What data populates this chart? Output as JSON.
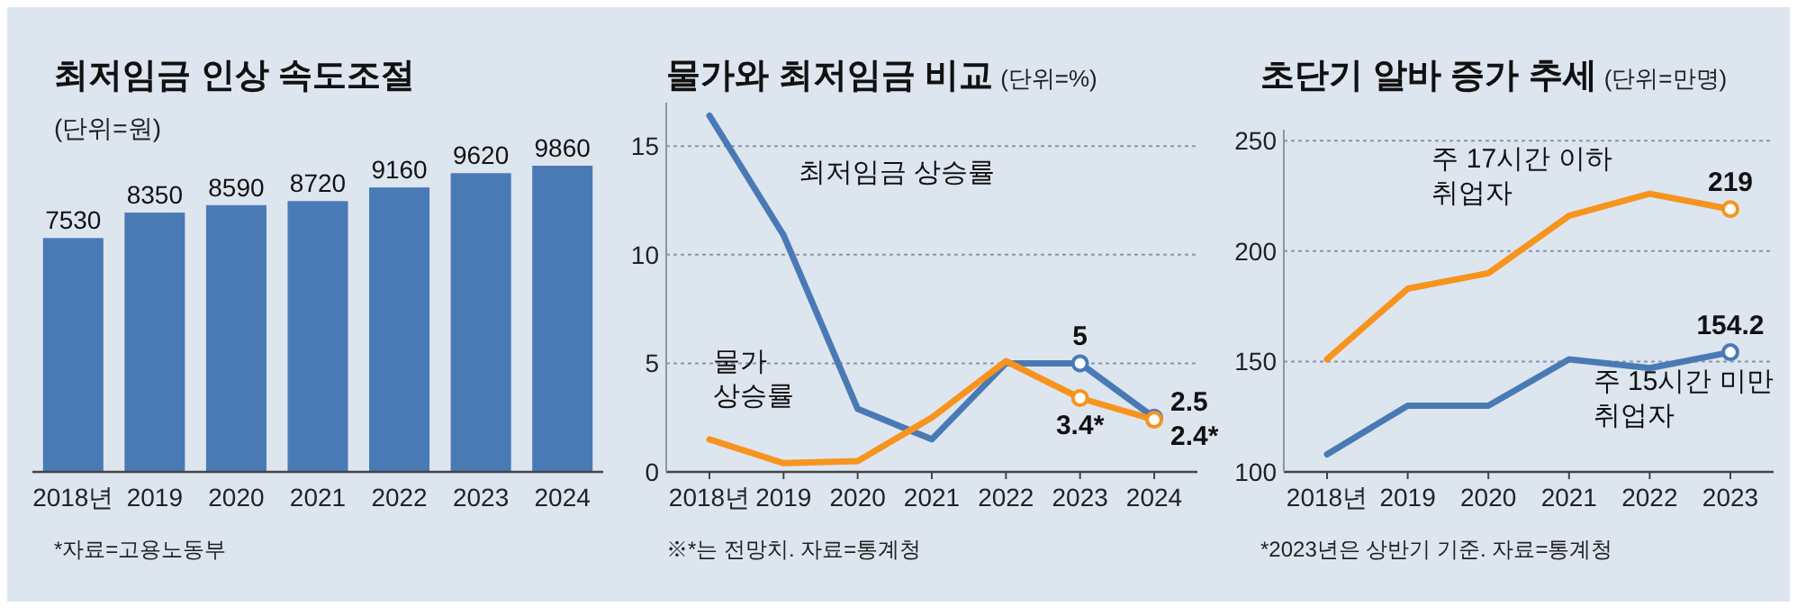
{
  "chart_data": [
    {
      "type": "bar",
      "title": "최저임금 인상 속도조절",
      "subtitle": "(단위=원)",
      "categories": [
        "2018년",
        "2019",
        "2020",
        "2021",
        "2022",
        "2023",
        "2024"
      ],
      "values": [
        7530,
        8350,
        8590,
        8720,
        9160,
        9620,
        9860
      ],
      "color": "#4a7ab5",
      "data_labels": true,
      "annotations": [
        "*자료=고용노동부"
      ]
    },
    {
      "type": "line",
      "title": "물가와 최저임금 비교",
      "subtitle": "(단위=%)",
      "categories": [
        "2018년",
        "2019",
        "2020",
        "2021",
        "2022",
        "2023",
        "2024"
      ],
      "series": [
        {
          "name": "최저임금 상승률",
          "color": "#4a7ab5",
          "values": [
            16.4,
            10.9,
            2.9,
            1.5,
            5.0,
            5,
            2.5
          ],
          "value_labels": [
            null,
            null,
            null,
            null,
            null,
            "5",
            "2.5"
          ]
        },
        {
          "name": "물가 상승률",
          "color": "#f7941d",
          "values": [
            1.5,
            0.4,
            0.5,
            2.5,
            5.1,
            3.4,
            2.4
          ],
          "value_labels": [
            null,
            null,
            null,
            null,
            null,
            "3.4*",
            "2.4*"
          ]
        }
      ],
      "ylim": [
        0,
        17
      ],
      "yticks": [
        0,
        5,
        10,
        15
      ],
      "grid": "y",
      "annotations": [
        "※*는 전망치. 자료=통계청"
      ]
    },
    {
      "type": "line",
      "title": "초단기 알바 증가 추세",
      "subtitle": "(단위=만명)",
      "categories": [
        "2018년",
        "2019",
        "2020",
        "2021",
        "2022",
        "2023"
      ],
      "series": [
        {
          "name": "주 17시간 이하 취업자",
          "color": "#f7941d",
          "values": [
            151,
            183,
            190,
            216,
            226,
            219
          ],
          "value_labels": [
            null,
            null,
            null,
            null,
            null,
            "219"
          ]
        },
        {
          "name": "주 15시간 미만 취업자",
          "color": "#4a7ab5",
          "values": [
            108,
            130,
            130,
            151,
            147,
            154.2
          ],
          "value_labels": [
            null,
            null,
            null,
            null,
            null,
            "154.2"
          ]
        }
      ],
      "ylim": [
        100,
        255
      ],
      "yticks": [
        100,
        150,
        200,
        250
      ],
      "grid": "y",
      "annotations": [
        "*2023년은 상반기 기준. 자료=통계청"
      ]
    }
  ]
}
